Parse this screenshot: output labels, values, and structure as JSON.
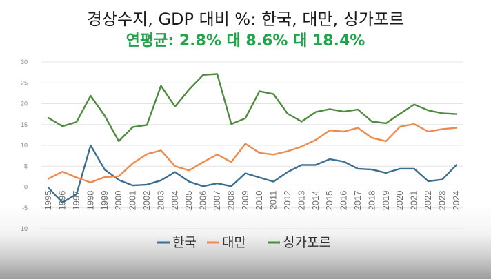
{
  "header": {
    "title": "경상수지, GDP 대비 %: 한국, 대만, 싱가포르",
    "subtitle": "연평균: 2.8% 대 8.6% 대 18.4%"
  },
  "chart_data": {
    "type": "line",
    "title": "경상수지, GDP 대비 %: 한국, 대만, 싱가포르",
    "subtitle": "연평균: 2.8% 대 8.6% 대 18.4%",
    "xlabel": "",
    "ylabel": "",
    "ylim": [
      -10,
      30
    ],
    "y_ticks": [
      "-10",
      "-5",
      "0",
      "5",
      "10",
      "15",
      "20",
      "25",
      "30"
    ],
    "y_tick_values": [
      -10,
      -5,
      0,
      5,
      10,
      15,
      20,
      25,
      30
    ],
    "grid": true,
    "legend_position": "bottom",
    "categories": [
      "1995",
      "1996",
      "1997",
      "1998",
      "1999",
      "2000",
      "2001",
      "2002",
      "2003",
      "2004",
      "2005",
      "2006",
      "2007",
      "2008",
      "2009",
      "2010",
      "2011",
      "2012",
      "2013",
      "2014",
      "2015",
      "2016",
      "2017",
      "2018",
      "2019",
      "2020",
      "2021",
      "2022",
      "2023",
      "2024"
    ],
    "series": [
      {
        "name": "한국",
        "color": "#3b6e8f",
        "values": [
          -0.2,
          -3.7,
          -1.7,
          10.0,
          4.2,
          1.7,
          0.4,
          0.6,
          1.6,
          3.6,
          1.3,
          0.2,
          0.9,
          0.2,
          3.3,
          2.3,
          1.3,
          3.6,
          5.3,
          5.3,
          6.7,
          6.1,
          4.4,
          4.2,
          3.4,
          4.4,
          4.4,
          1.4,
          1.8,
          5.3
        ]
      },
      {
        "name": "대만",
        "color": "#ed8b4e",
        "values": [
          2.0,
          3.7,
          2.3,
          1.1,
          2.4,
          2.6,
          5.7,
          7.9,
          8.8,
          5.0,
          4.0,
          6.0,
          7.8,
          6.0,
          10.4,
          8.2,
          7.8,
          8.6,
          9.7,
          11.3,
          13.6,
          13.3,
          14.2,
          11.8,
          11.0,
          14.5,
          15.1,
          13.3,
          13.9,
          14.2
        ]
      },
      {
        "name": "싱가포르",
        "color": "#4e8b3e",
        "values": [
          16.6,
          14.6,
          15.6,
          21.9,
          17.1,
          11.0,
          14.4,
          14.9,
          24.3,
          19.3,
          23.4,
          26.9,
          27.1,
          15.1,
          16.5,
          23.0,
          22.3,
          17.6,
          15.7,
          18.0,
          18.7,
          18.1,
          18.6,
          15.7,
          15.3,
          17.6,
          19.8,
          18.4,
          17.7,
          17.5
        ]
      }
    ]
  }
}
